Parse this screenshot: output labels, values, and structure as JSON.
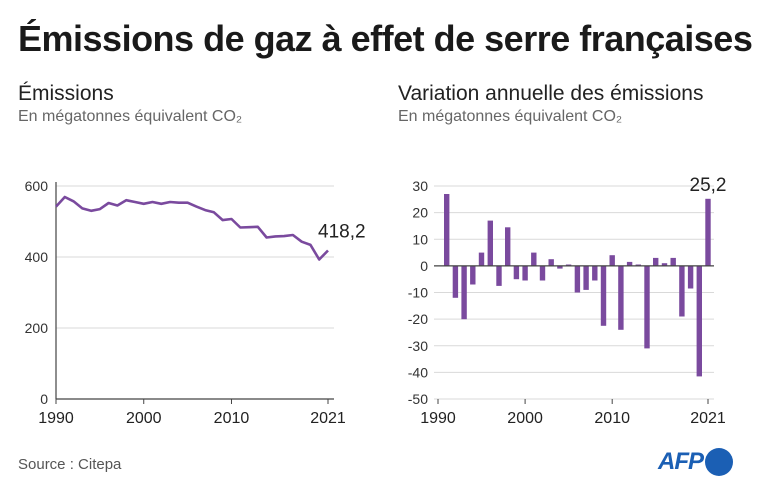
{
  "title": "Émissions de gaz à effet de serre françaises",
  "source": "Source : Citepa",
  "logo_text": "AFP",
  "colors": {
    "series": "#7a4a9e",
    "axis": "#444444",
    "grid": "#d9d9d9"
  },
  "chart_data": [
    {
      "type": "line",
      "title": "Émissions",
      "subtitle": "En mégatonnes équivalent CO₂",
      "x": [
        1990,
        1991,
        1992,
        1993,
        1994,
        1995,
        1996,
        1997,
        1998,
        1999,
        2000,
        2001,
        2002,
        2003,
        2004,
        2005,
        2006,
        2007,
        2008,
        2009,
        2010,
        2011,
        2012,
        2013,
        2014,
        2015,
        2016,
        2017,
        2018,
        2019,
        2020,
        2021
      ],
      "values": [
        542,
        569,
        557,
        537,
        530,
        535,
        552,
        545,
        560,
        555,
        550,
        555,
        550,
        555,
        553,
        553,
        542,
        532,
        526,
        504,
        507,
        483,
        484,
        485,
        455,
        458,
        459,
        462,
        443,
        434,
        393,
        418.2
      ],
      "ylim": [
        0,
        600
      ],
      "yticks": [
        0,
        200,
        400,
        600
      ],
      "xticks": [
        1990,
        2000,
        2010,
        2021
      ],
      "last_label": "418,2"
    },
    {
      "type": "bar",
      "title": "Variation annuelle des émissions",
      "subtitle": "En mégatonnes équivalent CO₂",
      "x": [
        1991,
        1992,
        1993,
        1994,
        1995,
        1996,
        1997,
        1998,
        1999,
        2000,
        2001,
        2002,
        2003,
        2004,
        2005,
        2006,
        2007,
        2008,
        2009,
        2010,
        2011,
        2012,
        2013,
        2014,
        2015,
        2016,
        2017,
        2018,
        2019,
        2020,
        2021
      ],
      "values": [
        27,
        -12,
        -20,
        -7,
        5,
        17,
        -7.5,
        14.5,
        -5,
        -5.5,
        5,
        -5.5,
        2.5,
        -1,
        0.5,
        -10,
        -9,
        -5.5,
        -22.5,
        4,
        -24,
        1.5,
        0.5,
        -31,
        3,
        1,
        3,
        -19,
        -8.5,
        -41.5,
        25.2
      ],
      "ylim": [
        -50,
        30
      ],
      "yticks": [
        30,
        20,
        10,
        0,
        -10,
        -20,
        -30,
        -40,
        -50
      ],
      "xticks": [
        1990,
        2000,
        2010,
        2021
      ],
      "last_label": "25,2"
    }
  ]
}
